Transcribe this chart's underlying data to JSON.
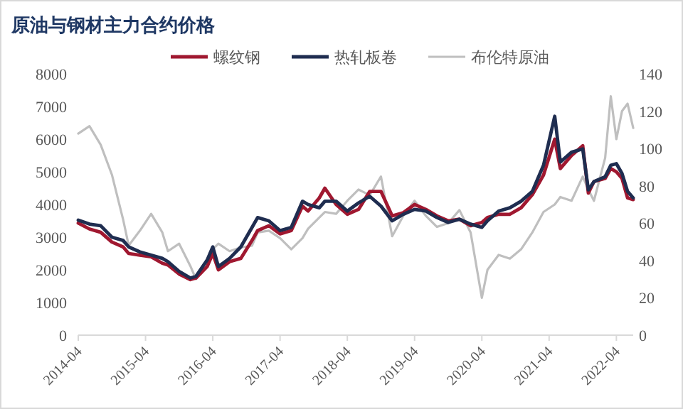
{
  "chart_data": {
    "type": "line",
    "title": "原油与钢材主力合约价格",
    "legend": "top",
    "x": [
      "2014-04",
      "2014-06",
      "2014-08",
      "2014-10",
      "2014-12",
      "2015-01",
      "2015-03",
      "2015-05",
      "2015-07",
      "2015-08",
      "2015-10",
      "2015-12",
      "2016-01",
      "2016-03",
      "2016-04",
      "2016-05",
      "2016-07",
      "2016-09",
      "2016-11",
      "2016-12",
      "2017-02",
      "2017-04",
      "2017-06",
      "2017-08",
      "2017-09",
      "2017-11",
      "2017-12",
      "2018-02",
      "2018-04",
      "2018-06",
      "2018-08",
      "2018-10",
      "2018-12",
      "2019-02",
      "2019-04",
      "2019-06",
      "2019-08",
      "2019-10",
      "2019-12",
      "2020-02",
      "2020-04",
      "2020-05",
      "2020-07",
      "2020-09",
      "2020-11",
      "2021-01",
      "2021-03",
      "2021-05",
      "2021-06",
      "2021-08",
      "2021-10",
      "2021-11",
      "2021-12",
      "2022-02",
      "2022-03",
      "2022-04",
      "2022-05",
      "2022-06",
      "2022-07"
    ],
    "series": [
      {
        "name": "螺纹钢",
        "color": "#a01830",
        "values": [
          3430,
          3250,
          3150,
          2850,
          2700,
          2500,
          2450,
          2400,
          2200,
          2150,
          1870,
          1700,
          1750,
          2100,
          2500,
          2000,
          2250,
          2350,
          2900,
          3200,
          3350,
          3100,
          3200,
          3950,
          3800,
          4200,
          4500,
          4000,
          3700,
          3850,
          4400,
          4400,
          3650,
          3750,
          4000,
          3850,
          3650,
          3500,
          3550,
          3350,
          3450,
          3600,
          3700,
          3700,
          3900,
          4300,
          4900,
          6000,
          5100,
          5500,
          5800,
          4350,
          4700,
          4800,
          5100,
          5000,
          4800,
          4200,
          4150
        ]
      },
      {
        "name": "热轧板卷",
        "color": "#1f2d50",
        "values": [
          3520,
          3400,
          3350,
          3000,
          2900,
          2700,
          2550,
          2450,
          2350,
          2250,
          1950,
          1750,
          1800,
          2300,
          2700,
          2100,
          2350,
          2700,
          3300,
          3600,
          3500,
          3200,
          3300,
          4100,
          4000,
          3900,
          4100,
          4100,
          3800,
          4050,
          4250,
          3950,
          3500,
          3700,
          3850,
          3800,
          3600,
          3450,
          3550,
          3400,
          3300,
          3500,
          3800,
          3900,
          4100,
          4400,
          5200,
          6700,
          5300,
          5600,
          5700,
          4450,
          4700,
          4850,
          5200,
          5250,
          4950,
          4400,
          4200
        ]
      },
      {
        "name": "布伦特原油",
        "color": "#bfbfbf",
        "axis": "y2",
        "values": [
          108,
          112,
          102,
          86,
          62,
          48,
          56,
          65,
          55,
          45,
          49,
          37,
          30,
          40,
          46,
          49,
          45,
          47,
          48,
          55,
          56,
          52,
          46,
          52,
          57,
          63,
          66,
          65,
          72,
          78,
          75,
          85,
          53,
          64,
          72,
          64,
          58,
          60,
          67,
          55,
          20,
          35,
          43,
          41,
          46,
          55,
          66,
          70,
          74,
          72,
          85,
          78,
          72,
          95,
          128,
          105,
          120,
          124,
          111
        ]
      }
    ],
    "xlim": [
      "2014-04",
      "2022-07"
    ],
    "xticks": [
      "2014-04",
      "2015-04",
      "2016-04",
      "2017-04",
      "2018-04",
      "2019-04",
      "2020-04",
      "2021-04",
      "2022-04"
    ],
    "ylim": [
      0,
      8000
    ],
    "yticks": [
      0,
      1000,
      2000,
      3000,
      4000,
      5000,
      6000,
      7000,
      8000
    ],
    "y2lim": [
      0,
      140
    ],
    "y2ticks": [
      0,
      20,
      40,
      60,
      80,
      100,
      120,
      140
    ],
    "grid": false
  }
}
